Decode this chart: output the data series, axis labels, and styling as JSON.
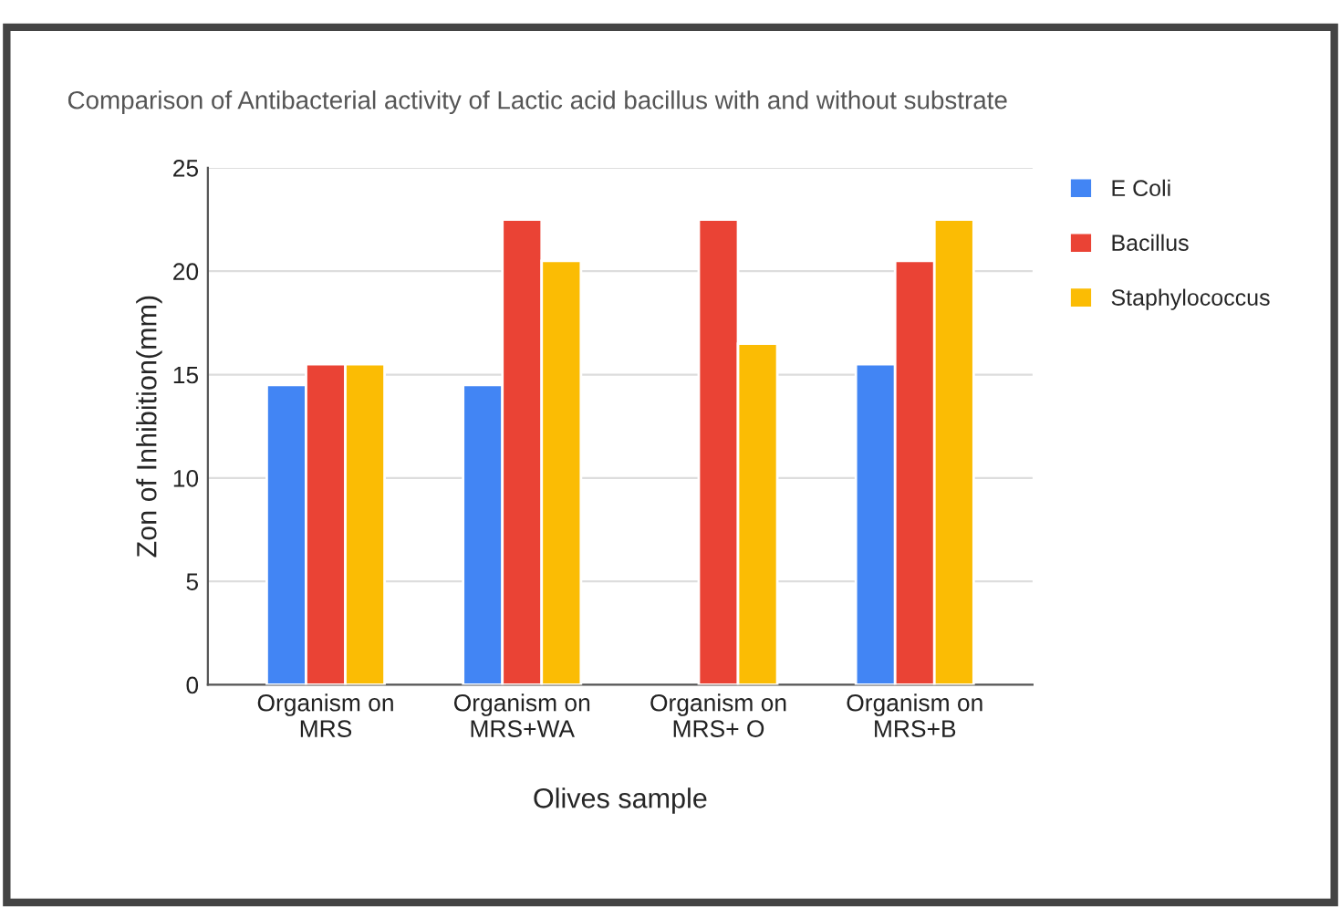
{
  "chart_data": {
    "type": "bar",
    "title": "Comparison of Antibacterial activity of Lactic acid bacillus with and without substrate",
    "xlabel": "Olives sample",
    "ylabel": "Zon of Inhibition(mm)",
    "categories": [
      "Organism on\nMRS",
      "Organism on\nMRS+WA",
      "Organism on\nMRS+ O",
      "Organism on\nMRS+B"
    ],
    "series": [
      {
        "name": "E Coli",
        "color": "#4285f4",
        "values": [
          14.5,
          14.5,
          null,
          15.5
        ]
      },
      {
        "name": "Bacillus",
        "color": "#ea4335",
        "values": [
          15.5,
          22.5,
          22.5,
          20.5
        ]
      },
      {
        "name": "Staphylococcus",
        "color": "#fbbc04",
        "values": [
          15.5,
          20.5,
          16.5,
          22.5
        ]
      }
    ],
    "ylim": [
      0,
      25
    ],
    "yticks": [
      0,
      5,
      10,
      15,
      20,
      25
    ],
    "grid": "y",
    "legend": "top right"
  }
}
